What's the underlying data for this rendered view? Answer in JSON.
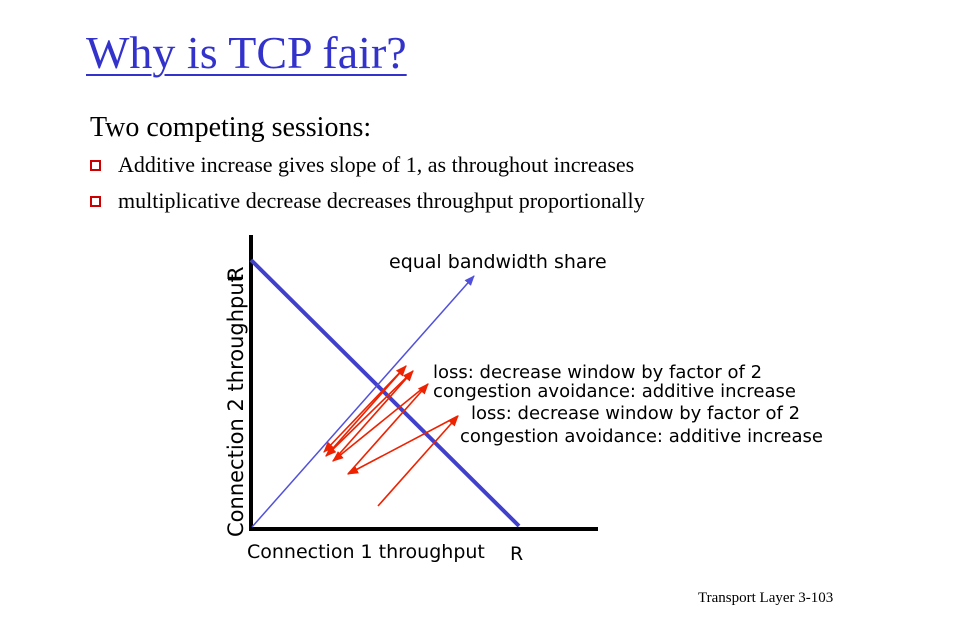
{
  "slide": {
    "title": "Why is TCP fair?",
    "intro": "Two competing sessions:",
    "bullets": [
      "Additive increase gives slope of 1, as throughout increases",
      "multiplicative decrease decreases throughput proportionally"
    ],
    "footer": "Transport Layer   3-103"
  },
  "diagram": {
    "y_axis_label": "Connection 2 throughput",
    "x_axis_label": "Connection 1 throughput",
    "y_max_label": "R",
    "x_max_label": "R",
    "equal_share_label": "equal bandwidth share",
    "annotations": [
      "loss: decrease window by factor of 2",
      "congestion avoidance: additive increase",
      "loss: decrease window by factor of 2",
      "congestion avoidance: additive increase"
    ],
    "colors": {
      "fair_line": "#4040cc",
      "equal_share_line": "#5050dd",
      "trajectory": "#ee2200",
      "axes": "#000000",
      "title": "#3333cc"
    }
  }
}
